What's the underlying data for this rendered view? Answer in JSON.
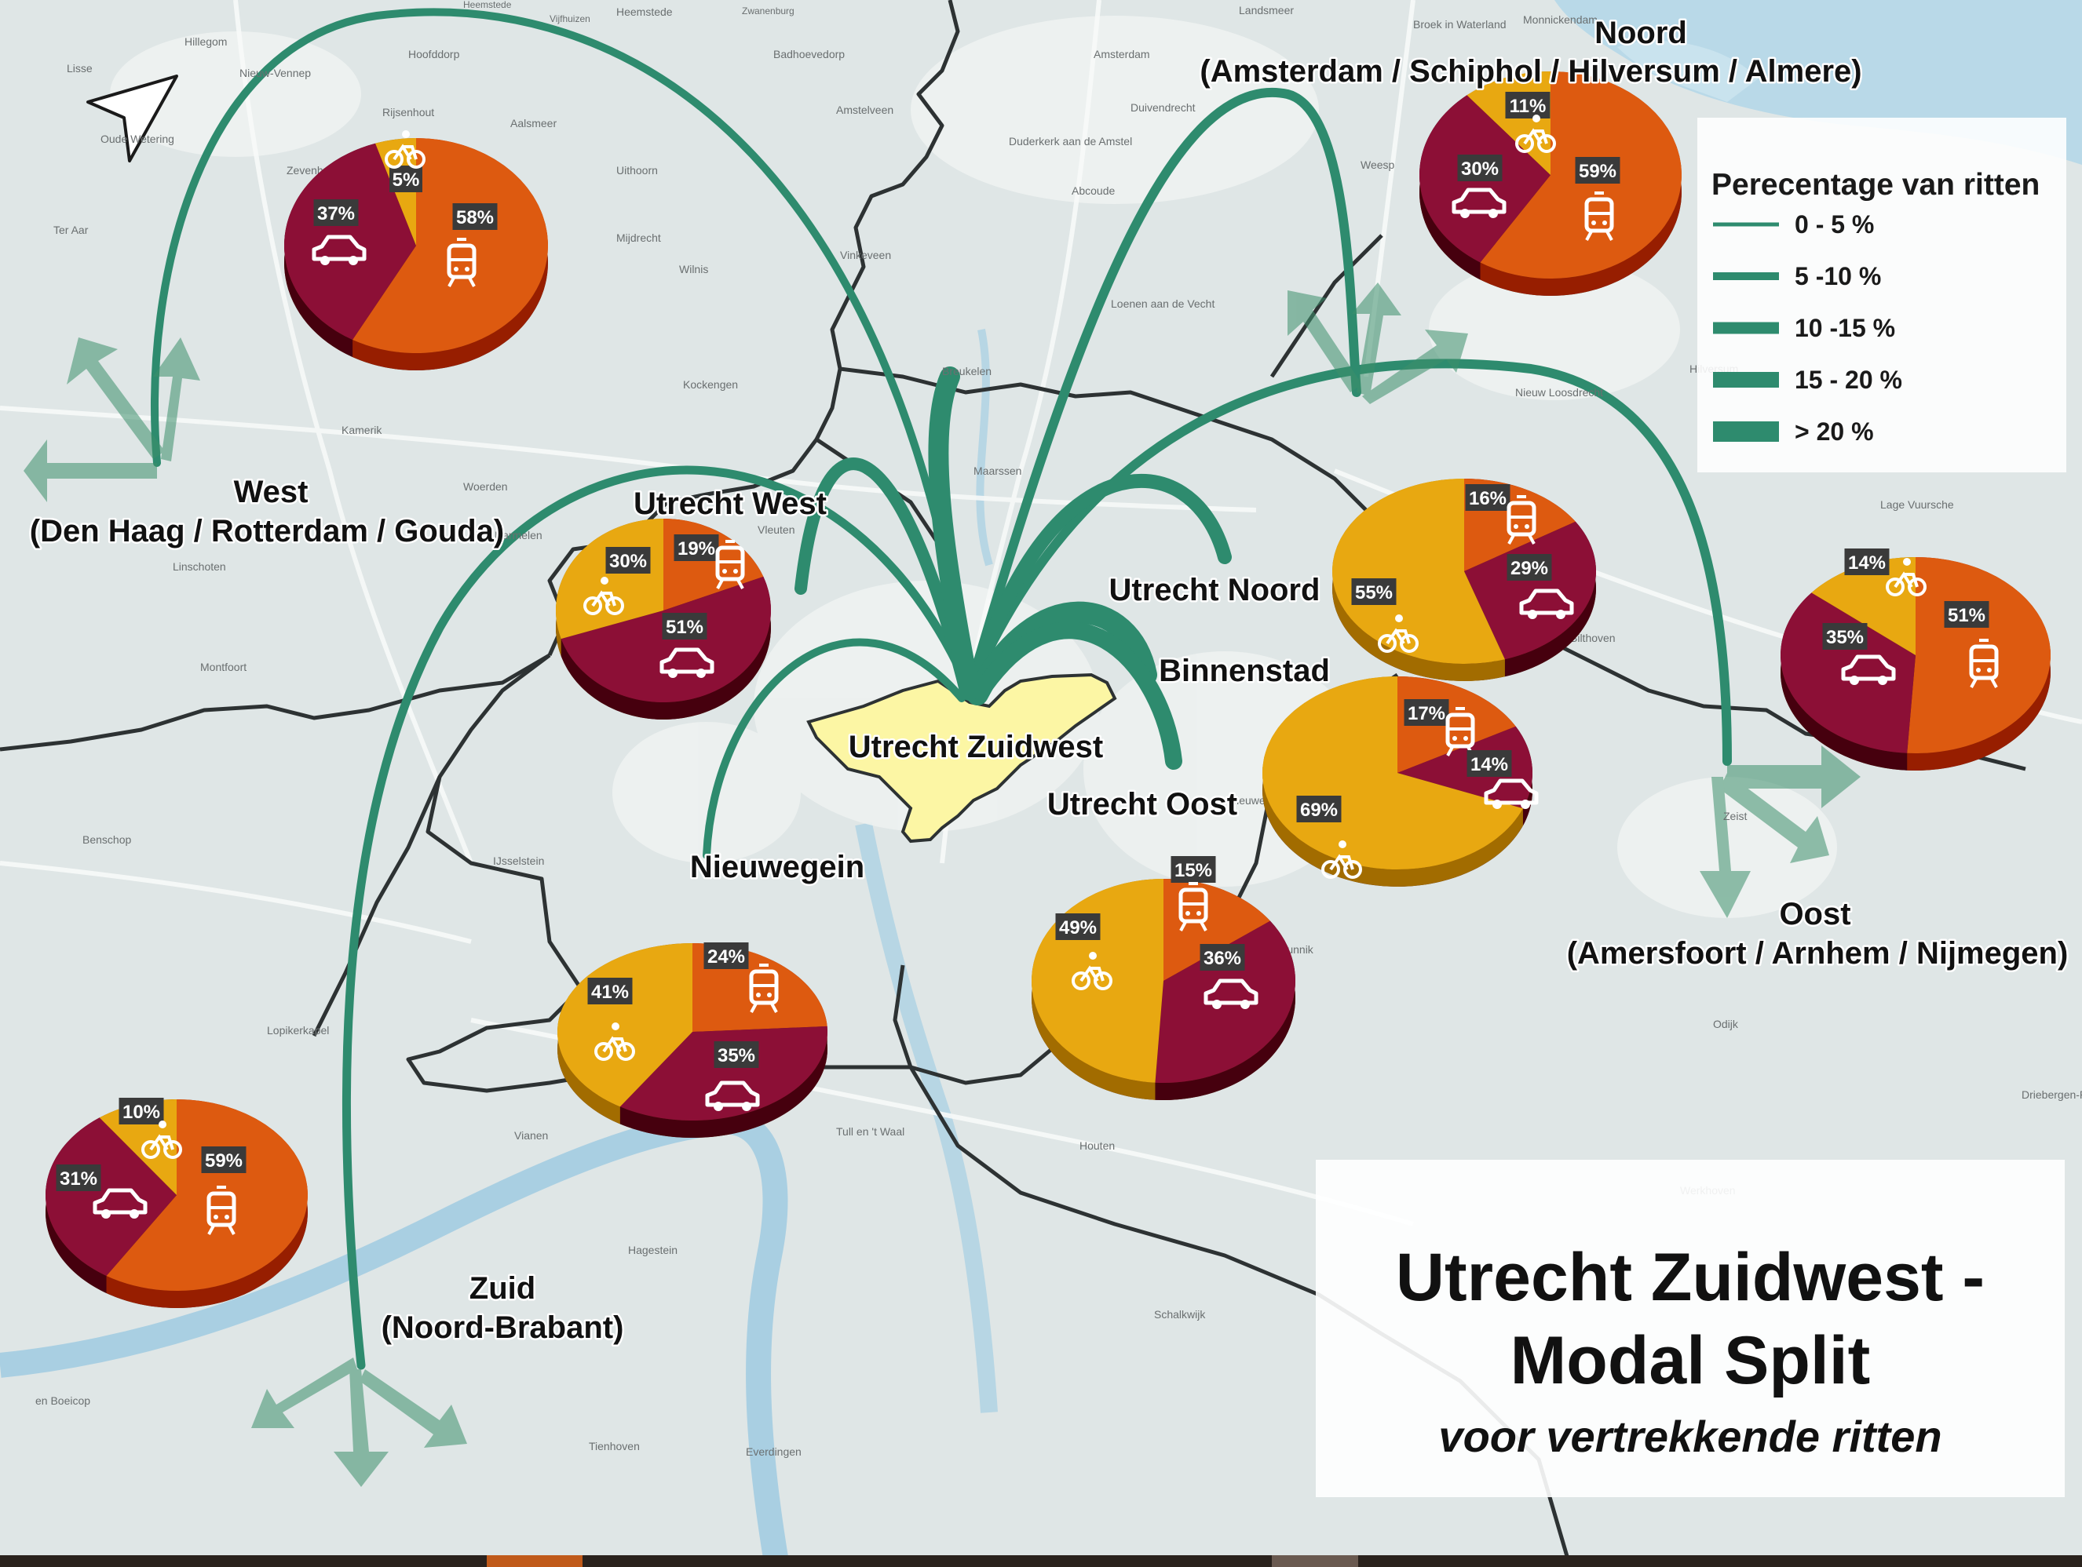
{
  "title": {
    "line1": "Utrecht Zuidwest -",
    "line2": "Modal Split",
    "subtitle": "voor vertrekkende ritten"
  },
  "legend": {
    "title": "Perecentage van ritten",
    "items": [
      "0 - 5 %",
      "5 -10 %",
      "10 -15 %",
      "15 - 20 %",
      "> 20 %"
    ]
  },
  "colors": {
    "bike": "#e8a811",
    "car": "#8c0f36",
    "pt": "#dd5a10",
    "flow": "#2e8b6e",
    "origin_area": "#fcf6a4"
  },
  "regions": {
    "noord": {
      "name": "Noord",
      "sub": "(Amsterdam / Schiphol / Hilversum / Almere)"
    },
    "west": {
      "name": "West",
      "sub": "(Den Haag / Rotterdam / Gouda)"
    },
    "oost": {
      "name": "Oost",
      "sub": "(Amersfoort / Arnhem / Nijmegen)"
    },
    "zuid": {
      "name": "Zuid",
      "sub": "(Noord-Brabant)"
    },
    "utrecht_west": "Utrecht West",
    "utrecht_noord": "Utrecht Noord",
    "binnenstad": "Binnenstad",
    "utrecht_zuidwest": "Utrecht Zuidwest",
    "utrecht_oost": "Utrecht Oost",
    "nieuwegein": "Nieuwegein"
  },
  "pies": [
    {
      "id": "west",
      "slices": [
        {
          "mode": "pt",
          "value": 58,
          "label": "58%"
        },
        {
          "mode": "car",
          "value": 37,
          "label": "37%"
        },
        {
          "mode": "bike",
          "value": 5,
          "label": "5%"
        }
      ]
    },
    {
      "id": "noord",
      "slices": [
        {
          "mode": "pt",
          "value": 59,
          "label": "59%"
        },
        {
          "mode": "car",
          "value": 30,
          "label": "30%"
        },
        {
          "mode": "bike",
          "value": 11,
          "label": "11%"
        }
      ]
    },
    {
      "id": "utrecht-west",
      "slices": [
        {
          "mode": "pt",
          "value": 19,
          "label": "19%"
        },
        {
          "mode": "car",
          "value": 51,
          "label": "51%"
        },
        {
          "mode": "bike",
          "value": 30,
          "label": "30%"
        }
      ]
    },
    {
      "id": "utrecht-noord",
      "slices": [
        {
          "mode": "pt",
          "value": 16,
          "label": "16%"
        },
        {
          "mode": "car",
          "value": 29,
          "label": "29%"
        },
        {
          "mode": "bike",
          "value": 55,
          "label": "55%"
        }
      ]
    },
    {
      "id": "binnenstad",
      "slices": [
        {
          "mode": "pt",
          "value": 17,
          "label": "17%"
        },
        {
          "mode": "car",
          "value": 14,
          "label": "14%"
        },
        {
          "mode": "bike",
          "value": 69,
          "label": "69%"
        }
      ]
    },
    {
      "id": "oost",
      "slices": [
        {
          "mode": "pt",
          "value": 51,
          "label": "51%"
        },
        {
          "mode": "car",
          "value": 35,
          "label": "35%"
        },
        {
          "mode": "bike",
          "value": 14,
          "label": "14%"
        }
      ]
    },
    {
      "id": "nieuwegein",
      "slices": [
        {
          "mode": "pt",
          "value": 24,
          "label": "24%"
        },
        {
          "mode": "car",
          "value": 35,
          "label": "35%"
        },
        {
          "mode": "bike",
          "value": 41,
          "label": "41%"
        }
      ]
    },
    {
      "id": "utrecht-oost",
      "slices": [
        {
          "mode": "pt",
          "value": 15,
          "label": "15%"
        },
        {
          "mode": "car",
          "value": 36,
          "label": "36%"
        },
        {
          "mode": "bike",
          "value": 49,
          "label": "49%"
        }
      ]
    },
    {
      "id": "zuid",
      "slices": [
        {
          "mode": "pt",
          "value": 59,
          "label": "59%"
        },
        {
          "mode": "car",
          "value": 31,
          "label": "31%"
        },
        {
          "mode": "bike",
          "value": 10,
          "label": "10%"
        }
      ]
    }
  ],
  "place_names": [
    "Heemstede",
    "Vijfhuizen",
    "Zwanenburg",
    "Amsterdam",
    "Landsmeer",
    "Broek in Waterland",
    "Monnickendam",
    "Hillegom",
    "Lisse",
    "Nieuw-Vennep",
    "Hoofddorp",
    "Badhoevedorp",
    "Amstelveen",
    "Duivendrecht",
    "Weesp",
    "Rijsenhout",
    "Aalsmeer",
    "Duderkerk aan de Amstel",
    "Abcoude",
    "Uithoorn",
    "Mijdrecht",
    "Wilnis",
    "Vinkeveen",
    "Breukelen",
    "Kockengen",
    "Maarssen",
    "Kamerik",
    "Woerden",
    "Linschoten",
    "Montfoort",
    "Harmelen",
    "Vleuten",
    "Benschop",
    "IJsselstein",
    "Vianen",
    "Lopikerkapel",
    "Hagestein",
    "Tienhoven",
    "Everdingen",
    "Bilthoven",
    "Zeist",
    "Odijk",
    "Driebergen-Rijsenburg",
    "Werkhoven",
    "Schalkwijk",
    "Tull en 't Waal",
    "Houten",
    "Ter Aar",
    "Hilversum",
    "Bunnik",
    "Nieuwegein",
    "Heemstede",
    "en Boeicop",
    "Oude Wetering",
    "Zevenhuizen",
    "Loenen aan de Vecht",
    "Nieuw Loosdrecht",
    "Lage Vuursche"
  ]
}
